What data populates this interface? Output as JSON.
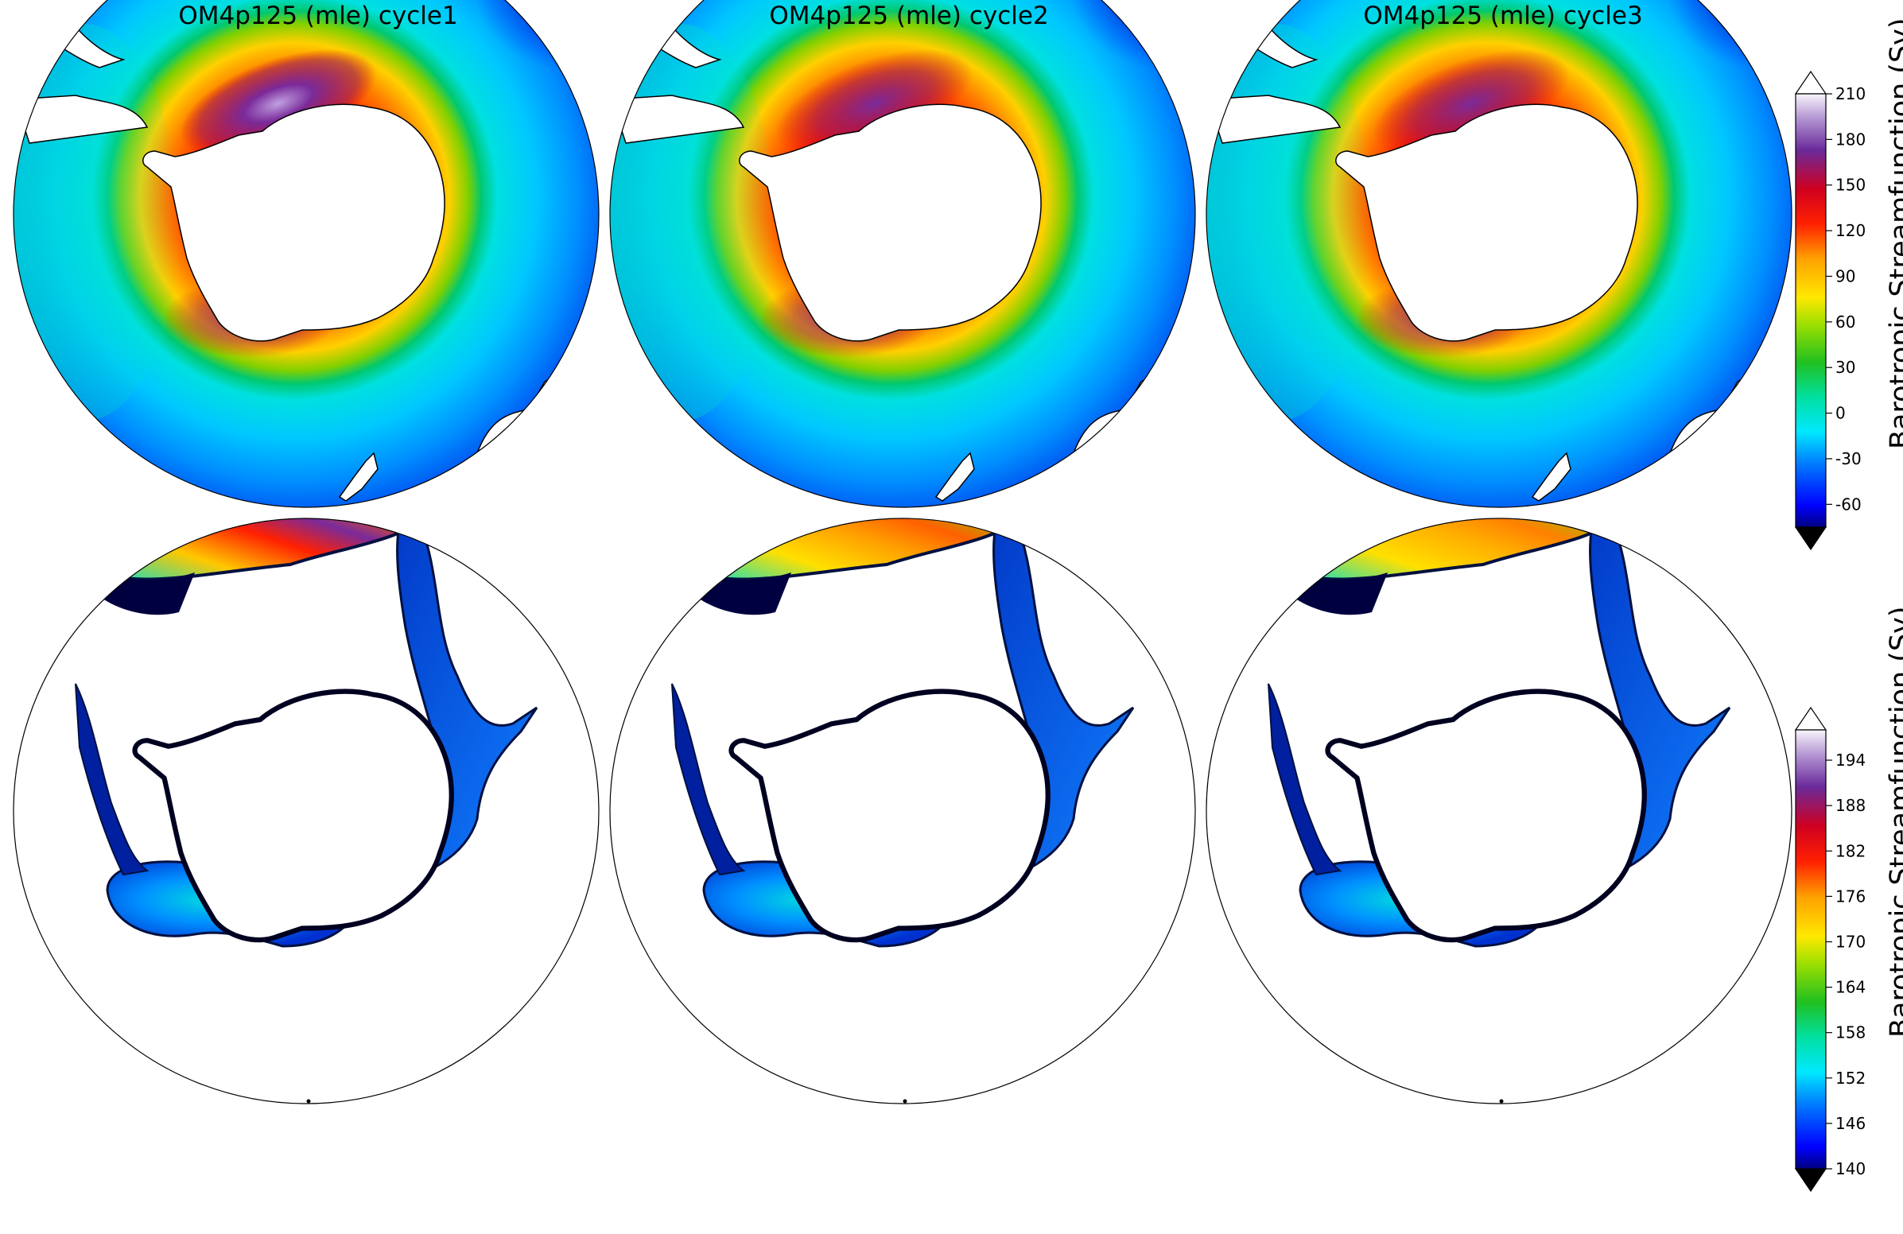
{
  "titles": [
    "OM4p125 (mle) cycle1",
    "OM4p125 (mle) cycle2",
    "OM4p125 (mle) cycle3"
  ],
  "colorbar_top": {
    "label": "Barotropic Streamfunction (Sv)",
    "min": -75,
    "max": 210,
    "ticks": [
      "-60",
      "-30",
      "0",
      "30",
      "60",
      "90",
      "120",
      "150",
      "180",
      "210"
    ],
    "tick_values": [
      -60,
      -30,
      0,
      30,
      60,
      90,
      120,
      150,
      180,
      210
    ],
    "extend": "both"
  },
  "colorbar_bottom": {
    "label": "Barotropic Streamfunction (Sv)",
    "min": 140,
    "max": 198,
    "ticks": [
      "140",
      "146",
      "152",
      "158",
      "164",
      "170",
      "176",
      "182",
      "188",
      "194"
    ],
    "tick_values": [
      140,
      146,
      152,
      158,
      164,
      170,
      176,
      182,
      188,
      194
    ],
    "extend": "both"
  },
  "colormap": [
    "#000000",
    "#00007f",
    "#0000ff",
    "#0060ff",
    "#00c8ff",
    "#00e8d0",
    "#00d090",
    "#20c020",
    "#80d000",
    "#e8e800",
    "#ffb000",
    "#ff6000",
    "#ff0000",
    "#d00020",
    "#8a1a7a",
    "#6a2a9a",
    "#b090d0",
    "#ffffff"
  ],
  "colors": {
    "land": "#ffffff",
    "coast": "#000000",
    "mask": "#ffffff"
  }
}
